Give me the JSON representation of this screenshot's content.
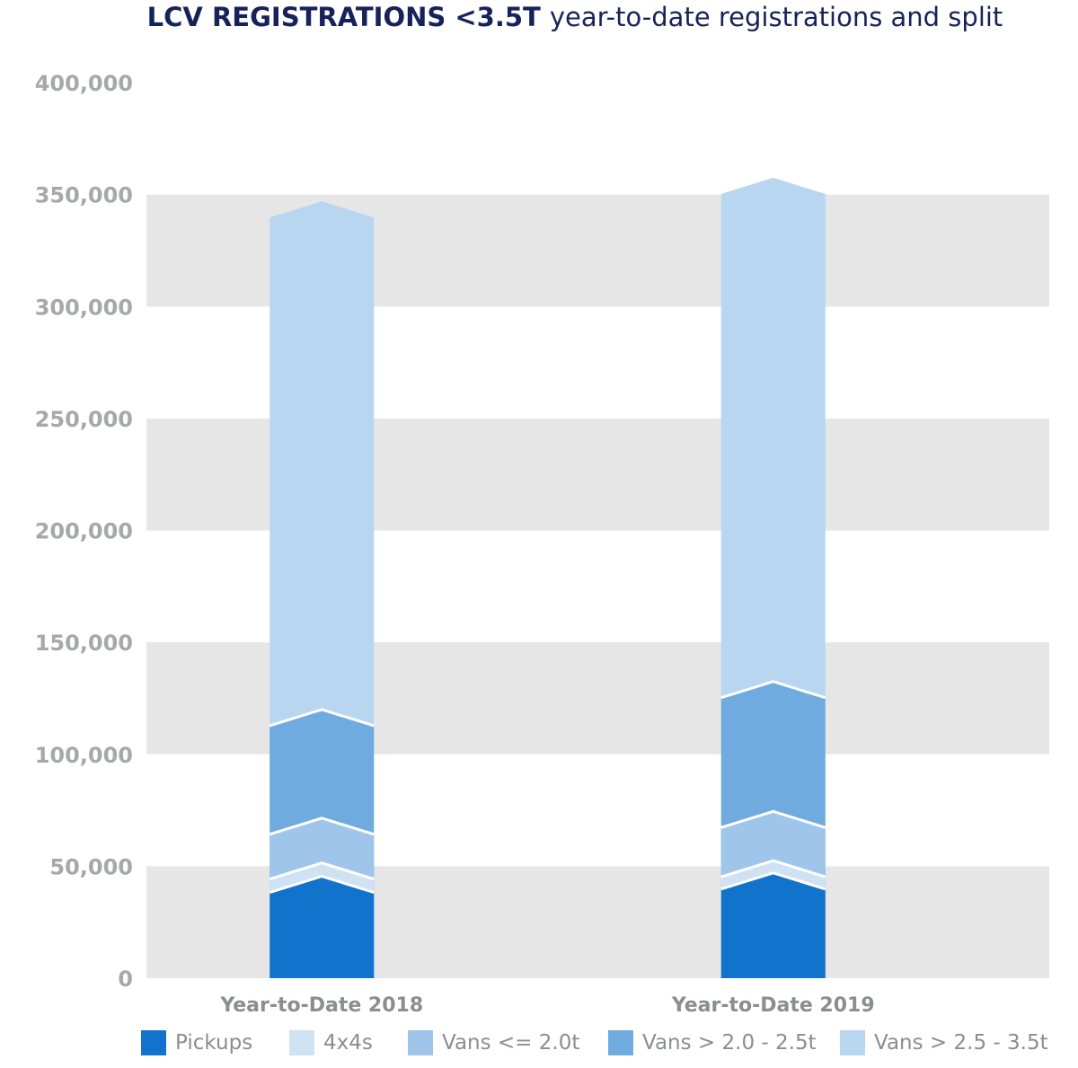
{
  "title": {
    "bold": "LCV REGISTRATIONS <3.5T",
    "rest": "year-to-date registrations and split"
  },
  "chart_data": {
    "type": "bar",
    "stacked": true,
    "categories": [
      "Year-to-Date 2018",
      "Year-to-Date 2019"
    ],
    "series": [
      {
        "name": "Pickups",
        "color": "#1273cc",
        "values": [
          45500,
          47000
        ]
      },
      {
        "name": "4x4s",
        "color": "#cee2f4",
        "values": [
          6000,
          5500
        ]
      },
      {
        "name": "Vans <= 2.0t",
        "color": "#9fc6ea",
        "values": [
          20000,
          22000
        ]
      },
      {
        "name": "Vans > 2.0 - 2.5t",
        "color": "#70abdf",
        "values": [
          48500,
          58000
        ]
      },
      {
        "name": "Vans > 2.5 - 3.5t",
        "color": "#b8d6f0",
        "values": [
          227000,
          225000
        ]
      }
    ],
    "y_ticks": [
      "0",
      "50,000",
      "100,000",
      "150,000",
      "200,000",
      "250,000",
      "300,000",
      "350,000",
      "400,000"
    ],
    "ylim": [
      0,
      400000
    ],
    "grid": "alternating grey bands",
    "legend": "bottom"
  }
}
